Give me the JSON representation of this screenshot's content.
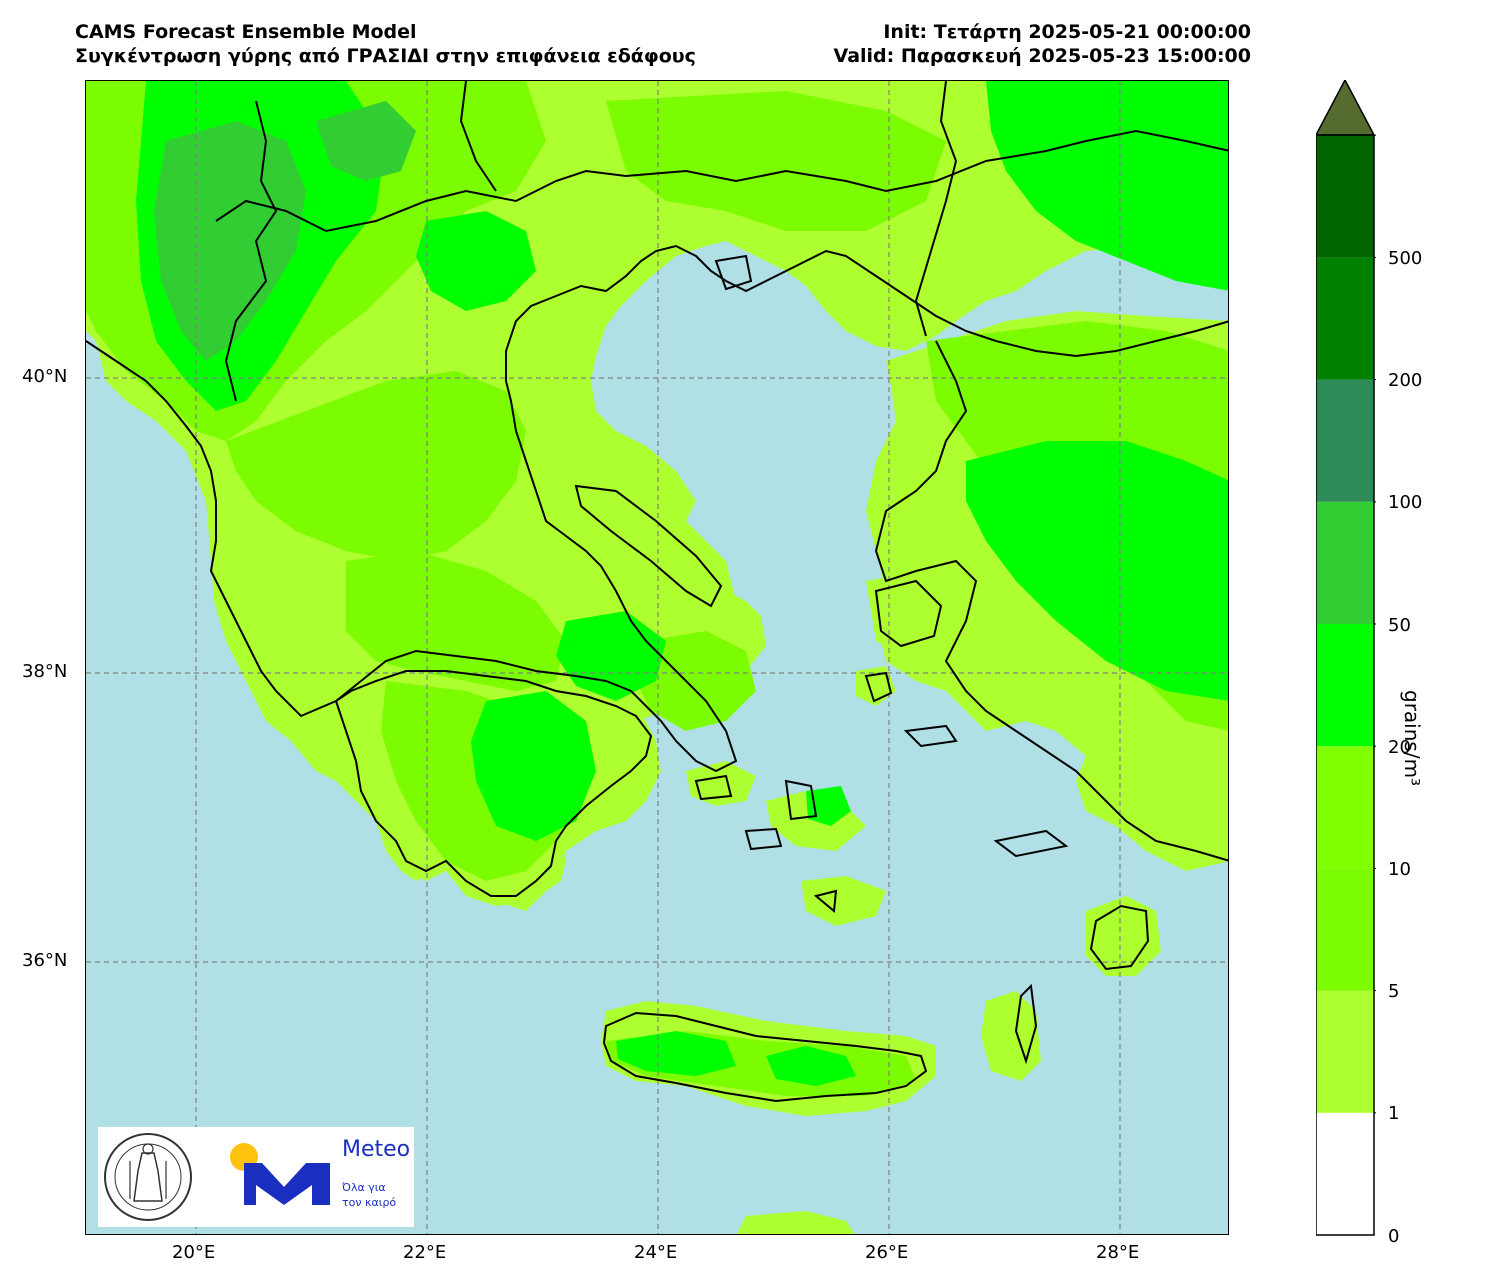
{
  "header": {
    "left_line1": "CAMS Forecast Ensemble Model",
    "left_line2": "Συγκέντρωση γύρης από ΓΡΑΣΙΔΙ στην επιφάνεια εδάφους",
    "right_line1": "Init: Τετάρτη 2025-05-21 00:00:00",
    "right_line2": "Valid: Παρασκευή 2025-05-23 15:00:00"
  },
  "map": {
    "lat_labels": [
      "40°N",
      "38°N",
      "36°N"
    ],
    "lon_labels": [
      "20°E",
      "22°E",
      "24°E",
      "26°E",
      "28°E"
    ],
    "sea_color": "#b0dfe5",
    "grid_style": "dashed grey"
  },
  "logos": {
    "meteo_name": "Meteo",
    "meteo_tagline_1": "Όλα για",
    "meteo_tagline_2": "τον καιρό",
    "meteo_color": "#1a2fbf",
    "sun_color": "#ffc20e"
  },
  "colorbar": {
    "unit": "grains/m³",
    "tick_labels": [
      "0",
      "1",
      "5",
      "10",
      "20",
      "50",
      "100",
      "200",
      "500"
    ],
    "colors": [
      "#ffffff",
      "#adff2f",
      "#7cfc00",
      "#7fff00",
      "#00ff00",
      "#32cd32",
      "#2e8b57",
      "#008000",
      "#006400",
      "#556b2f"
    ],
    "extend": "max"
  }
}
